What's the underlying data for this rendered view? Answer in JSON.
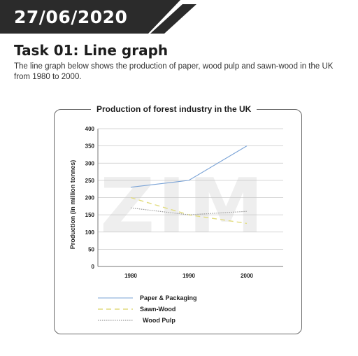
{
  "header": {
    "date": "27/06/2020",
    "task_title": "Task 01: Line graph",
    "description": "The line graph below shows the production of paper, wood pulp and sawn-wood in the UK from 1980 to 2000."
  },
  "watermark": "ZIM",
  "colors": {
    "banner": "#2b2b2b",
    "paper": "#7aa3d6",
    "sawn": "#e2dc7e",
    "pulp": "#9a9a9a"
  },
  "chart_data": {
    "type": "line",
    "title": "Production of forest industry in the UK",
    "xlabel": "",
    "ylabel": "Production (in million tonnes)",
    "categories": [
      "1980",
      "1990",
      "2000"
    ],
    "ylim": [
      0,
      400
    ],
    "yticks": [
      0,
      50,
      100,
      150,
      200,
      250,
      300,
      350,
      400
    ],
    "grid": true,
    "legend_position": "bottom-left",
    "series": [
      {
        "name": "Paper & Packaging",
        "values": [
          230,
          250,
          350
        ],
        "style": "solid"
      },
      {
        "name": "Sawn-Wood",
        "values": [
          200,
          150,
          125
        ],
        "style": "dashed"
      },
      {
        "name": "Wood Pulp",
        "values": [
          170,
          150,
          160
        ],
        "style": "dotted"
      }
    ]
  }
}
